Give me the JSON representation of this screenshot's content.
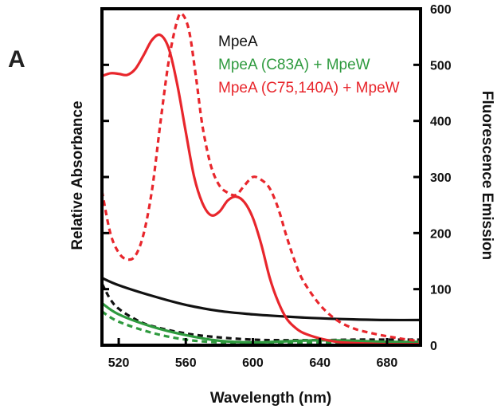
{
  "panel_label": "A",
  "chart_data": {
    "type": "line",
    "xlabel": "Wavelength (nm)",
    "ylabel_left": "Relative Absorbance",
    "ylabel_right": "Fluorescence Emission",
    "xlim": [
      510,
      700
    ],
    "xticks": [
      520,
      560,
      600,
      640,
      680
    ],
    "ylim_right": [
      0,
      600
    ],
    "yticks_right": [
      0,
      100,
      200,
      300,
      400,
      500,
      600
    ],
    "grid": false,
    "legend_position": "top-right",
    "legend": [
      {
        "text": "MpeA",
        "color": "#111111"
      },
      {
        "text": "MpeA (C83A) + MpeW",
        "color": "#2e9a3e"
      },
      {
        "text": "MpeA (C75,140A) + MpeW",
        "color": "#e8262c"
      }
    ],
    "series": [
      {
        "color": "#111111",
        "style": "solid",
        "x": [
          510,
          520,
          540,
          560,
          580,
          600,
          620,
          640,
          660,
          680,
          700
        ],
        "y": [
          120,
          107,
          88,
          72,
          61,
          55,
          51,
          48,
          46,
          45,
          45
        ]
      },
      {
        "color": "#111111",
        "style": "dashed",
        "x": [
          510,
          515,
          520,
          530,
          540,
          560,
          580,
          600,
          620,
          640,
          660,
          680,
          700
        ],
        "y": [
          110,
          82,
          65,
          46,
          34,
          21,
          14,
          10,
          9,
          9,
          10,
          10,
          10
        ]
      },
      {
        "color": "#2e9a3e",
        "style": "solid",
        "x": [
          510,
          520,
          540,
          560,
          580,
          600,
          620,
          640,
          660,
          680,
          700
        ],
        "y": [
          75,
          55,
          33,
          18,
          8,
          5,
          7,
          9,
          8,
          6,
          6
        ]
      },
      {
        "color": "#2e9a3e",
        "style": "dashed",
        "x": [
          510,
          520,
          540,
          560,
          580,
          600,
          620,
          640,
          660,
          680,
          700
        ],
        "y": [
          60,
          42,
          22,
          10,
          5,
          3,
          4,
          5,
          5,
          4,
          4
        ]
      },
      {
        "color": "#e8262c",
        "style": "solid",
        "x": [
          510,
          515,
          520,
          525,
          530,
          535,
          540,
          545,
          550,
          555,
          560,
          565,
          570,
          575,
          580,
          585,
          590,
          595,
          600,
          605,
          610,
          615,
          620,
          625,
          630,
          640,
          650,
          660,
          680,
          700
        ],
        "y": [
          480,
          485,
          484,
          482,
          493,
          518,
          545,
          553,
          528,
          464,
          380,
          300,
          253,
          232,
          238,
          258,
          265,
          255,
          227,
          180,
          121,
          78,
          48,
          32,
          22,
          12,
          6,
          4,
          2,
          2
        ]
      },
      {
        "color": "#e8262c",
        "style": "dashed",
        "x": [
          510,
          515,
          520,
          525,
          530,
          535,
          540,
          545,
          550,
          555,
          558,
          562,
          566,
          570,
          575,
          580,
          585,
          590,
          595,
          600,
          605,
          610,
          615,
          620,
          625,
          630,
          640,
          650,
          660,
          670,
          680,
          690,
          700
        ],
        "y": [
          275,
          200,
          165,
          153,
          160,
          200,
          280,
          400,
          510,
          580,
          590,
          560,
          480,
          390,
          320,
          285,
          272,
          268,
          285,
          300,
          295,
          280,
          245,
          195,
          150,
          115,
          72,
          45,
          30,
          22,
          16,
          11,
          7
        ]
      }
    ]
  }
}
